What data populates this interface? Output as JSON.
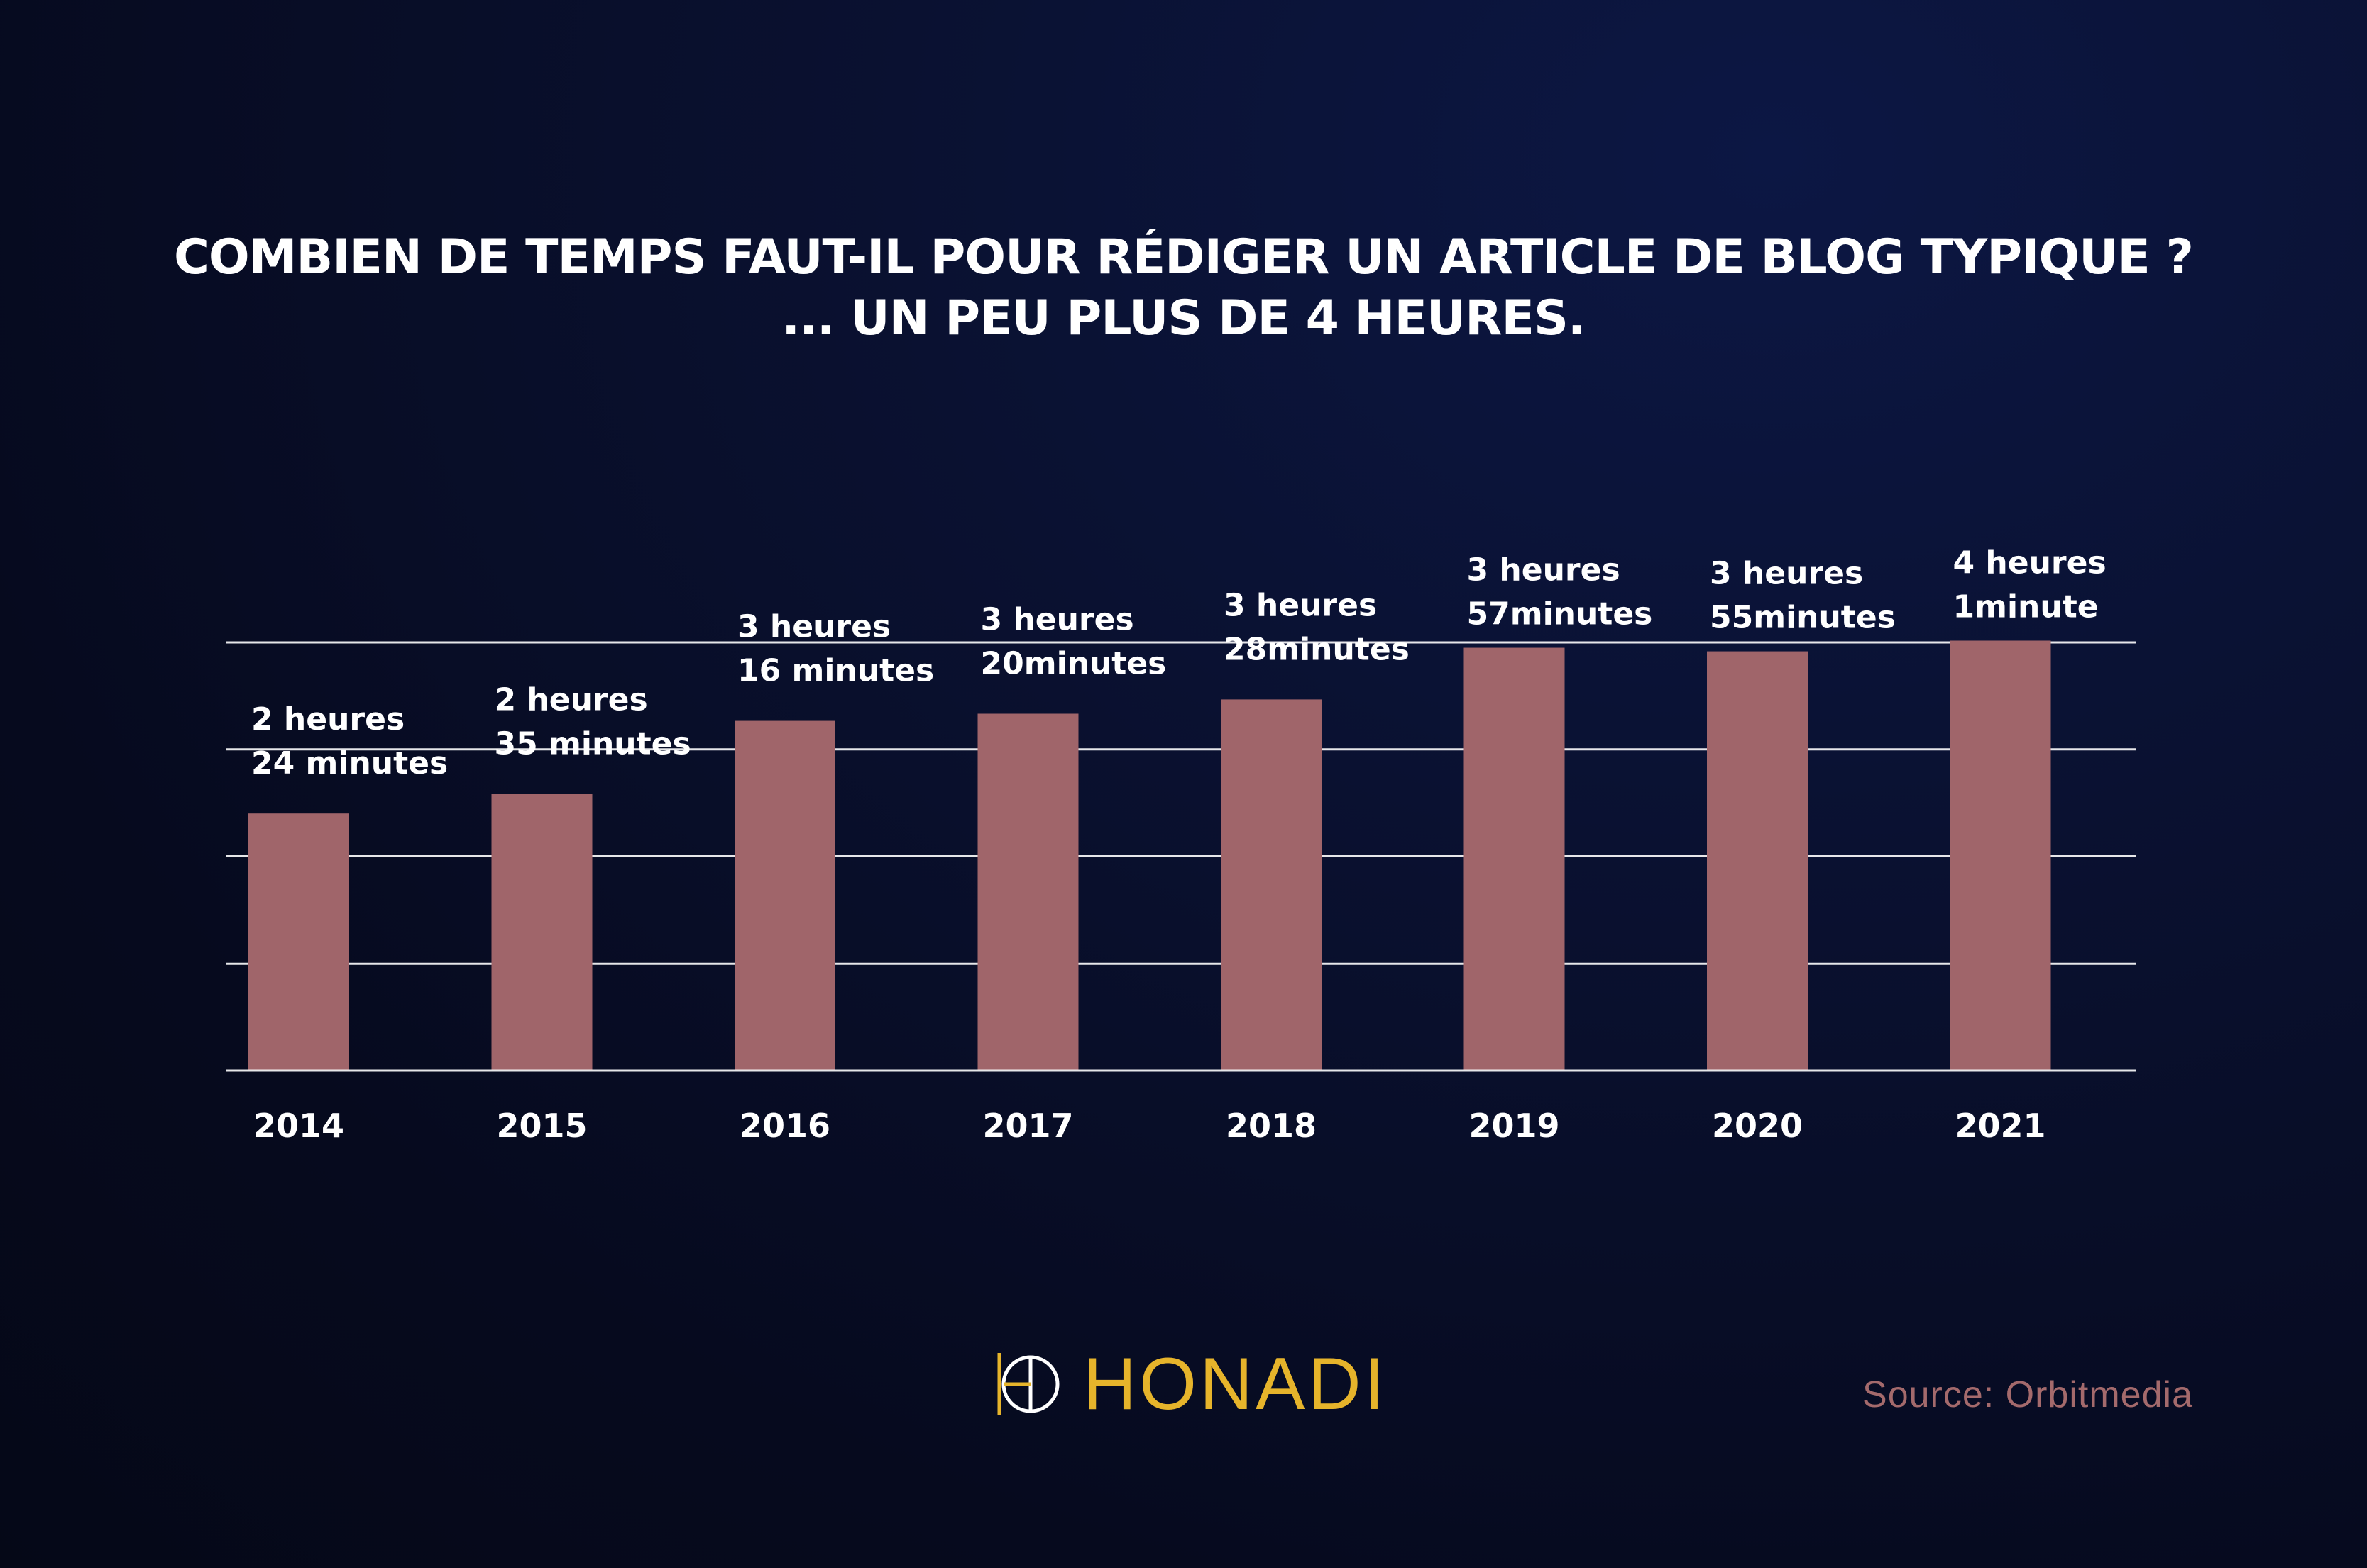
{
  "title": {
    "line1": "COMBIEN DE TEMPS FAUT-IL POUR RÉDIGER UN ARTICLE DE BLOG TYPIQUE ?",
    "line2": "... UN PEU PLUS DE 4 HEURES."
  },
  "brand": {
    "name": "HONADI",
    "logo_icon": "honadi-h-circle-icon",
    "color": "#e6b42b"
  },
  "source": "Source: Orbitmedia",
  "colors": {
    "bar": "#a0656a",
    "gridline": "#ffffff",
    "text": "#ffffff",
    "source": "#a46a6c"
  },
  "chart_data": {
    "type": "bar",
    "title": "COMBIEN DE TEMPS FAUT-IL POUR RÉDIGER UN ARTICLE DE BLOG TYPIQUE ?",
    "subtitle": "... UN PEU PLUS DE 4 HEURES.",
    "xlabel": "",
    "ylabel": "",
    "categories": [
      "2014",
      "2015",
      "2016",
      "2017",
      "2018",
      "2019",
      "2020",
      "2021"
    ],
    "values_minutes": [
      144,
      155,
      196,
      200,
      208,
      237,
      235,
      241
    ],
    "data_labels": [
      [
        "2 heures",
        "24 minutes"
      ],
      [
        "2 heures",
        "35 minutes"
      ],
      [
        "3 heures",
        "16 minutes"
      ],
      [
        "3 heures",
        "20minutes"
      ],
      [
        "3 heures",
        "28minutes"
      ],
      [
        "3 heures",
        "57minutes"
      ],
      [
        "3 heures",
        "55minutes"
      ],
      [
        "4 heures",
        "1minute"
      ]
    ],
    "ylim": [
      0,
      240
    ],
    "grid": true,
    "legend": "none"
  }
}
